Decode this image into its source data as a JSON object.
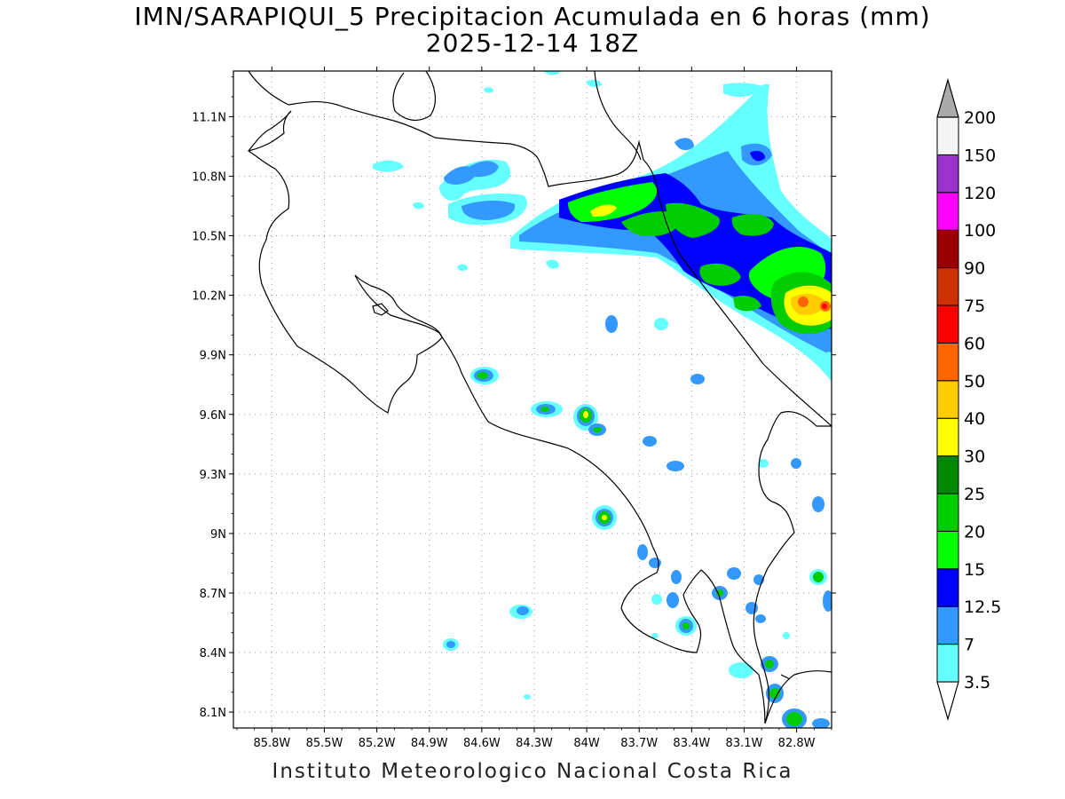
{
  "title": {
    "line1": "IMN/SARAPIQUI_5 Precipitacion Acumulada en 6 horas (mm)",
    "line2": "2025-12-14 18Z"
  },
  "footer": "Instituto Meteorologico Nacional Costa Rica",
  "map": {
    "lon_range": [
      -86.02,
      -82.6
    ],
    "lat_range": [
      8.02,
      11.33
    ],
    "lon_ticks": [
      {
        "value": -85.8,
        "label": "85.8W"
      },
      {
        "value": -85.5,
        "label": "85.5W"
      },
      {
        "value": -85.2,
        "label": "85.2W"
      },
      {
        "value": -84.9,
        "label": "84.9W"
      },
      {
        "value": -84.6,
        "label": "84.6W"
      },
      {
        "value": -84.3,
        "label": "84.3W"
      },
      {
        "value": -84.0,
        "label": "84W"
      },
      {
        "value": -83.7,
        "label": "83.7W"
      },
      {
        "value": -83.4,
        "label": "83.4W"
      },
      {
        "value": -83.1,
        "label": "83.1W"
      },
      {
        "value": -82.8,
        "label": "82.8W"
      }
    ],
    "lat_ticks": [
      {
        "value": 11.1,
        "label": "11.1N"
      },
      {
        "value": 10.8,
        "label": "10.8N"
      },
      {
        "value": 10.5,
        "label": "10.5N"
      },
      {
        "value": 10.2,
        "label": "10.2N"
      },
      {
        "value": 9.9,
        "label": "9.9N"
      },
      {
        "value": 9.6,
        "label": "9.6N"
      },
      {
        "value": 9.3,
        "label": "9.3N"
      },
      {
        "value": 9.0,
        "label": "9N"
      },
      {
        "value": 8.7,
        "label": "8.7N"
      },
      {
        "value": 8.4,
        "label": "8.4N"
      },
      {
        "value": 8.1,
        "label": "8.1N"
      }
    ],
    "grid": true
  },
  "legend": {
    "bins": [
      {
        "label": "3.5",
        "color": "#66ffff"
      },
      {
        "label": "7",
        "color": "#3399ff"
      },
      {
        "label": "12.5",
        "color": "#0000ff"
      },
      {
        "label": "15",
        "color": "#00ff00"
      },
      {
        "label": "20",
        "color": "#00cc00"
      },
      {
        "label": "25",
        "color": "#008800"
      },
      {
        "label": "30",
        "color": "#ffff00"
      },
      {
        "label": "40",
        "color": "#ffcc00"
      },
      {
        "label": "50",
        "color": "#ff6600"
      },
      {
        "label": "60",
        "color": "#ff0000"
      },
      {
        "label": "75",
        "color": "#cc3300"
      },
      {
        "label": "90",
        "color": "#990000"
      },
      {
        "label": "100",
        "color": "#ff00ff"
      },
      {
        "label": "120",
        "color": "#9933cc"
      },
      {
        "label": "150",
        "color": "#f5f5f5"
      },
      {
        "label": "200",
        "color": "#aaaaaa"
      }
    ]
  },
  "precip_cells": [
    {
      "lon": -84.58,
      "lat": 9.76,
      "level": 4
    },
    {
      "lon": -84.17,
      "lat": 9.61,
      "level": 3
    },
    {
      "lon": -83.93,
      "lat": 9.56,
      "level": 7
    },
    {
      "lon": -83.87,
      "lat": 9.5,
      "level": 3
    },
    {
      "lon": -83.87,
      "lat": 9.06,
      "level": 7
    },
    {
      "lon": -83.53,
      "lat": 9.44,
      "level": 2
    },
    {
      "lon": -83.4,
      "lat": 9.3,
      "level": 2
    },
    {
      "lon": -84.3,
      "lat": 8.58,
      "level": 2
    },
    {
      "lon": -84.68,
      "lat": 8.41,
      "level": 2
    },
    {
      "lon": -83.87,
      "lat": 10.05,
      "level": 2
    },
    {
      "lon": -83.48,
      "lat": 8.52,
      "level": 4
    },
    {
      "lon": -83.02,
      "lat": 8.67,
      "level": 3
    },
    {
      "lon": -82.72,
      "lat": 8.75,
      "level": 4
    },
    {
      "lon": -82.85,
      "lat": 8.31,
      "level": 4
    },
    {
      "lon": -82.79,
      "lat": 8.18,
      "level": 4
    },
    {
      "lon": -82.7,
      "lat": 8.05,
      "level": 4
    },
    {
      "lon": -83.83,
      "lat": 10.62,
      "level": 7
    },
    {
      "lon": -83.45,
      "lat": 10.58,
      "level": 4
    },
    {
      "lon": -82.95,
      "lat": 10.25,
      "level": 4
    },
    {
      "lon": -82.7,
      "lat": 10.18,
      "level": 5
    },
    {
      "lon": -82.66,
      "lat": 10.12,
      "level": 8
    },
    {
      "lon": -82.87,
      "lat": 10.87,
      "level": 3
    },
    {
      "lon": -84.75,
      "lat": 10.77,
      "level": 2
    }
  ]
}
